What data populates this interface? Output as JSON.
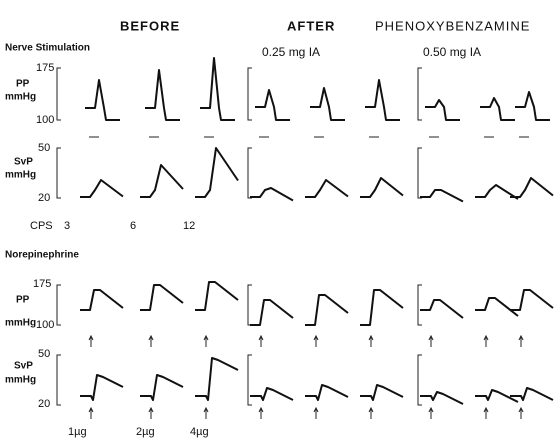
{
  "header": {
    "before": "BEFORE",
    "after": "AFTER",
    "drug": "PHENOXYBENZAMINE"
  },
  "doses": [
    "0.25 mg IA",
    "0.50 mg IA"
  ],
  "sections": [
    {
      "title": "Nerve Stimulation",
      "pp_label": [
        "PP",
        "mmHg"
      ],
      "pp_ticks": [
        "175",
        "100"
      ],
      "svp_label": [
        "SvP",
        "mmHg"
      ],
      "svp_ticks": [
        "50",
        "20"
      ],
      "stimuli_title": "CPS",
      "stimuli": [
        "3",
        "6",
        "12"
      ]
    },
    {
      "title": "Norepinephrine",
      "pp_label": [
        "PP",
        "mmHg"
      ],
      "pp_ticks": [
        "175",
        "100"
      ],
      "svp_label": [
        "SvP",
        "mmHg"
      ],
      "svp_ticks": [
        "50",
        "20"
      ],
      "stimuli": [
        "1µg",
        "2µg",
        "4µg"
      ]
    }
  ]
}
